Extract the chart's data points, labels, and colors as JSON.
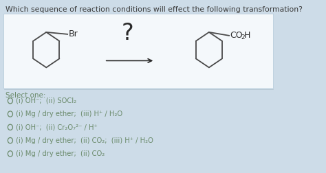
{
  "title": "Which sequence of reaction conditions will effect the following transformation?",
  "title_fontsize": 7.8,
  "bg_color": "#cddce8",
  "white_box_bg": "#f5f8fb",
  "font_color": "#3a3a3a",
  "text_color_options": "#5a7a5a",
  "reactant_label": "Br",
  "select_one": "Select one:",
  "options": [
    "(i) OH⁻;  (ii) SOCl₂",
    "(i) Mg / dry ether;  (iii) H⁺ / H₂O",
    "(i) OH⁻;  (ii) Cr₂O₇²⁻ / H⁺",
    "(i) Mg / dry ether;  (ii) CO₂;  (iii) H⁺ / H₂O",
    "(i) Mg / dry ether;  (ii) CO₂"
  ],
  "option_fontsize": 7.2,
  "select_fontsize": 7.5,
  "ring_color": "#4a4a4a",
  "label_color": "#2a2a2a"
}
